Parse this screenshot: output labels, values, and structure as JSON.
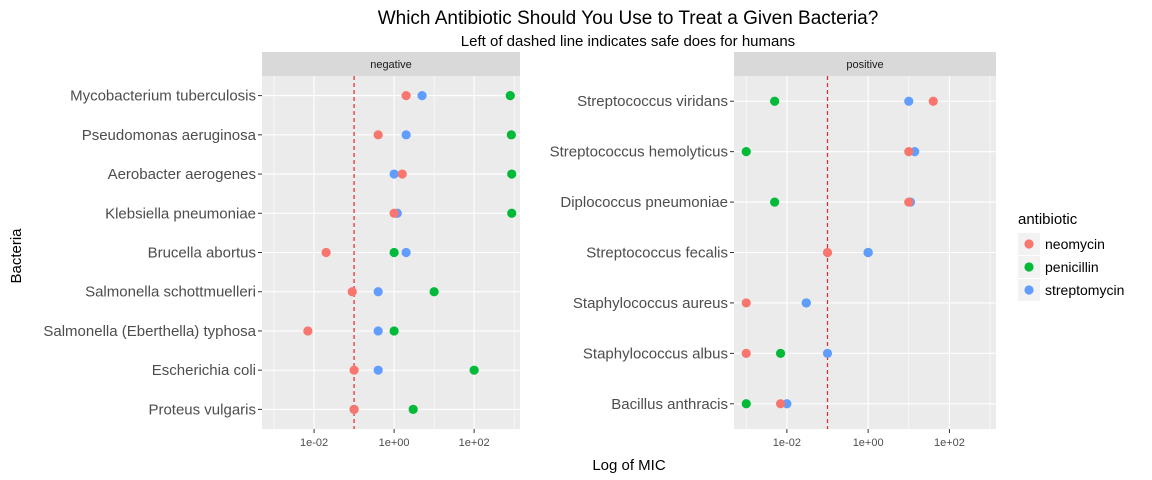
{
  "chart_data": {
    "type": "scatter",
    "title": "Which Antibiotic Should You Use to Treat a Given Bacteria?",
    "subtitle": "Left of dashed line indicates safe does for humans",
    "xlabel": "Log of MIC",
    "ylabel": "Bacteria",
    "x_scale": "log10",
    "x_ticks": [
      "1e-02",
      "1e+00",
      "1e+02"
    ],
    "x_tick_values": [
      0.01,
      1,
      100
    ],
    "xlim": [
      0.0005,
      1400
    ],
    "safe_threshold": 0.1,
    "grid": true,
    "legend": {
      "title": "antibiotic",
      "position": "right",
      "entries": [
        {
          "name": "neomycin",
          "color": "#F8766D"
        },
        {
          "name": "penicillin",
          "color": "#00BA38"
        },
        {
          "name": "streptomycin",
          "color": "#619CFF"
        }
      ]
    },
    "panels": [
      {
        "label": "negative",
        "categories": [
          "Mycobacterium tuberculosis",
          "Pseudomonas aeruginosa",
          "Aerobacter aerogenes",
          "Klebsiella pneumoniae",
          "Brucella abortus",
          "Salmonella schottmuelleri",
          "Salmonella (Eberthella) typhosa",
          "Escherichia coli",
          "Proteus vulgaris"
        ],
        "series": [
          {
            "name": "penicillin",
            "values": [
              800,
              850,
              870,
              870,
              1,
              10,
              1,
              100,
              3
            ]
          },
          {
            "name": "streptomycin",
            "values": [
              5,
              2,
              1,
              1.2,
              2,
              0.4,
              0.4,
              0.4,
              0.1
            ]
          },
          {
            "name": "neomycin",
            "values": [
              2,
              0.4,
              1.6,
              1,
              0.02,
              0.09,
              0.007,
              0.1,
              0.1
            ]
          }
        ]
      },
      {
        "label": "positive",
        "categories": [
          "Streptococcus viridans",
          "Streptococcus hemolyticus",
          "Diplococcus pneumoniae",
          "Streptococcus fecalis",
          "Staphylococcus aureus",
          "Staphylococcus albus",
          "Bacillus anthracis"
        ],
        "series": [
          {
            "name": "penicillin",
            "values": [
              0.005,
              0.001,
              0.005,
              1,
              0.03,
              0.007,
              0.001
            ]
          },
          {
            "name": "streptomycin",
            "values": [
              10,
              14,
              11,
              1,
              0.03,
              0.1,
              0.01
            ]
          },
          {
            "name": "neomycin",
            "values": [
              40,
              10,
              10,
              0.1,
              0.001,
              0.001,
              0.007
            ]
          }
        ]
      }
    ]
  }
}
